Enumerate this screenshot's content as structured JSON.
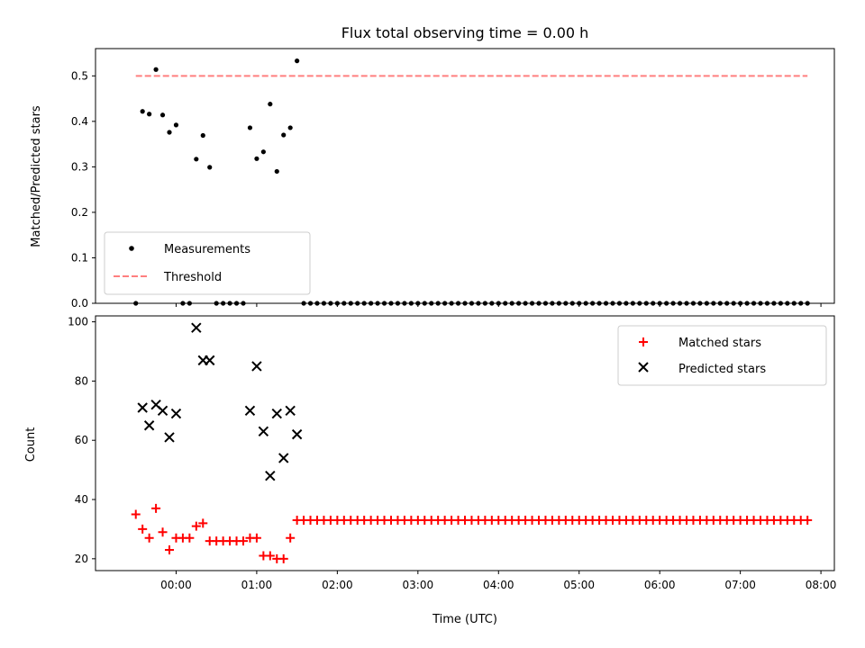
{
  "chart_data": [
    {
      "type": "scatter",
      "title": "Flux total observing time = 0.00 h",
      "ylabel": "Matched/Predicted stars",
      "ylim": [
        0,
        0.56
      ],
      "yticks": [
        0.0,
        0.1,
        0.2,
        0.3,
        0.4,
        0.5
      ],
      "ytick_labels": [
        "0.0",
        "0.1",
        "0.2",
        "0.3",
        "0.4",
        "0.5"
      ],
      "grid": false,
      "legend": {
        "placement": "lower-left",
        "entries": [
          "Measurements",
          "Threshold"
        ]
      },
      "series": [
        {
          "name": "Measurements",
          "marker": "dot",
          "color": "#000000",
          "points": [
            [
              "23:30",
              0.0
            ],
            [
              "23:35",
              0.422
            ],
            [
              "23:40",
              0.416
            ],
            [
              "23:45",
              0.514
            ],
            [
              "23:50",
              0.414
            ],
            [
              "23:55",
              0.376
            ],
            [
              "00:00",
              0.392
            ],
            [
              "00:05",
              0.0
            ],
            [
              "00:10",
              0.0
            ],
            [
              "00:15",
              0.317
            ],
            [
              "00:20",
              0.369
            ],
            [
              "00:25",
              0.299
            ],
            [
              "00:30",
              0.0
            ],
            [
              "00:35",
              0.0
            ],
            [
              "00:40",
              0.0
            ],
            [
              "00:45",
              0.0
            ],
            [
              "00:50",
              0.0
            ],
            [
              "00:55",
              0.386
            ],
            [
              "01:00",
              0.318
            ],
            [
              "01:05",
              0.333
            ],
            [
              "01:10",
              0.438
            ],
            [
              "01:15",
              0.29
            ],
            [
              "01:20",
              0.37
            ],
            [
              "01:25",
              0.386
            ],
            [
              "01:30",
              0.533
            ]
          ],
          "zero_run": {
            "start": "01:35",
            "end": "07:50",
            "step_minutes": 5,
            "value": 0.0
          }
        },
        {
          "name": "Threshold",
          "style": "dashed",
          "color": "#ff7f7f",
          "x": [
            "23:30",
            "07:50"
          ],
          "values": [
            0.5,
            0.5
          ]
        }
      ]
    },
    {
      "type": "scatter",
      "xlabel": "Time (UTC)",
      "ylabel": "Count",
      "ylim": [
        16,
        102
      ],
      "yticks": [
        20,
        40,
        60,
        80,
        100
      ],
      "ytick_labels": [
        "20",
        "40",
        "60",
        "80",
        "100"
      ],
      "x_axis": {
        "type": "time",
        "range": [
          "23:00",
          "08:10"
        ],
        "tick_labels": [
          "00:00",
          "01:00",
          "02:00",
          "03:00",
          "04:00",
          "05:00",
          "06:00",
          "07:00",
          "08:00"
        ]
      },
      "grid": false,
      "legend": {
        "placement": "top-right",
        "entries": [
          "Matched stars",
          "Predicted stars"
        ]
      },
      "series": [
        {
          "name": "Matched stars",
          "marker": "plus",
          "color": "#ff0000",
          "points": [
            [
              "23:30",
              35
            ],
            [
              "23:35",
              30
            ],
            [
              "23:40",
              27
            ],
            [
              "23:45",
              37
            ],
            [
              "23:50",
              29
            ],
            [
              "23:55",
              23
            ],
            [
              "00:00",
              27
            ],
            [
              "00:05",
              27
            ],
            [
              "00:10",
              27
            ],
            [
              "00:15",
              31
            ],
            [
              "00:20",
              32
            ],
            [
              "00:25",
              26
            ],
            [
              "00:30",
              26
            ],
            [
              "00:35",
              26
            ],
            [
              "00:40",
              26
            ],
            [
              "00:45",
              26
            ],
            [
              "00:50",
              26
            ],
            [
              "00:55",
              27
            ],
            [
              "01:00",
              27
            ],
            [
              "01:05",
              21
            ],
            [
              "01:10",
              21
            ],
            [
              "01:15",
              20
            ],
            [
              "01:20",
              20
            ],
            [
              "01:25",
              27
            ],
            [
              "01:30",
              33
            ]
          ],
          "constant_run": {
            "start": "01:35",
            "end": "07:50",
            "step_minutes": 5,
            "value": 33
          }
        },
        {
          "name": "Predicted stars",
          "marker": "x",
          "color": "#000000",
          "points": [
            [
              "23:35",
              71
            ],
            [
              "23:40",
              65
            ],
            [
              "23:45",
              72
            ],
            [
              "23:50",
              70
            ],
            [
              "23:55",
              61
            ],
            [
              "00:00",
              69
            ],
            [
              "00:15",
              98
            ],
            [
              "00:20",
              87
            ],
            [
              "00:25",
              87
            ],
            [
              "00:55",
              70
            ],
            [
              "01:00",
              85
            ],
            [
              "01:05",
              63
            ],
            [
              "01:10",
              48
            ],
            [
              "01:15",
              69
            ],
            [
              "01:20",
              54
            ],
            [
              "01:25",
              70
            ],
            [
              "01:30",
              62
            ]
          ]
        }
      ]
    }
  ]
}
